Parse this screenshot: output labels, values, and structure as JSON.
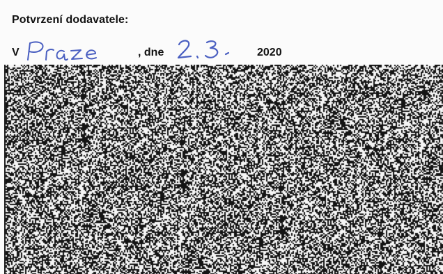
{
  "document": {
    "heading": "Potvrzení dodavatele:",
    "place_prefix": "V",
    "place_handwritten": "Praze",
    "date_prefix": ", dne",
    "date_handwritten": "2. 3.",
    "year": "2020",
    "ink_color": "#4a5fc1",
    "redaction": "noise-pattern"
  }
}
